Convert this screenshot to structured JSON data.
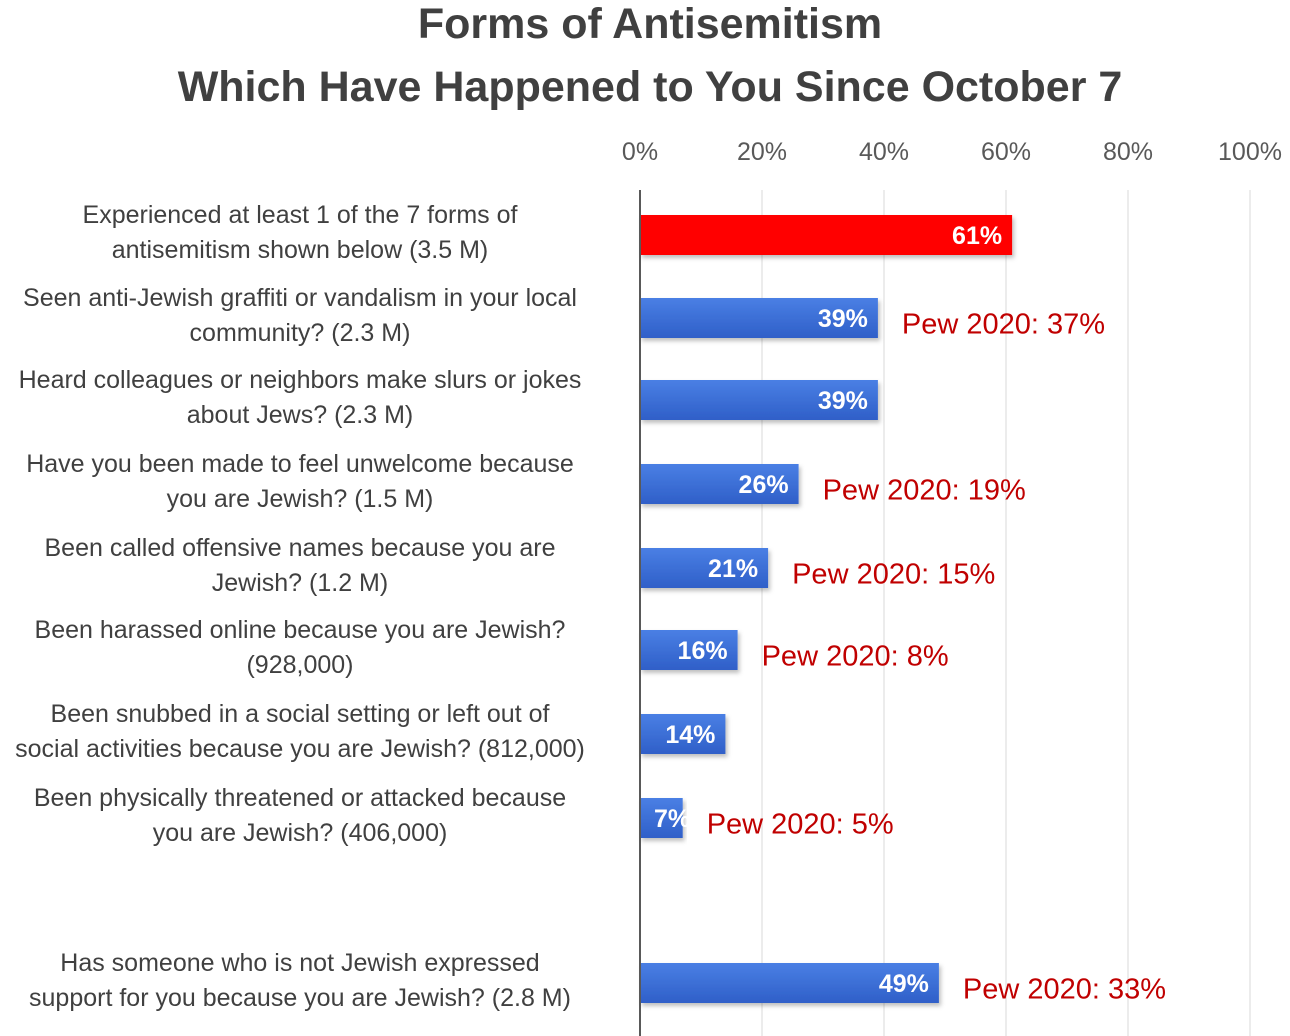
{
  "chart_data": {
    "type": "bar",
    "orientation": "horizontal",
    "title": "Forms of Antisemitism",
    "subtitle": "Which Have Happened to You Since October 7",
    "xlabel": "",
    "ylabel": "",
    "xlim": [
      0,
      100
    ],
    "x_ticks": [
      "0%",
      "20%",
      "40%",
      "60%",
      "80%",
      "100%"
    ],
    "x_tick_values": [
      0,
      20,
      40,
      60,
      80,
      100
    ],
    "grid": true,
    "tick_position": "top",
    "categories": [
      "Experienced at least 1 of the 7 forms of antisemitism shown below (3.5 M)",
      "Seen anti-Jewish graffiti or vandalism in your local community? (2.3 M)",
      "Heard colleagues or neighbors make slurs or jokes about Jews? (2.3 M)",
      "Have you been made to feel unwelcome because you are Jewish? (1.5 M)",
      "Been called offensive names because you are Jewish? (1.2 M)",
      "Been harassed online because you are Jewish? (928,000)",
      "Been snubbed in a social setting or left out of social activities because you are Jewish? (812,000)",
      "Been physically threatened or attacked because you are Jewish? (406,000)",
      "Has someone who is not Jewish expressed support for you because you are Jewish? (2.8 M)"
    ],
    "category_lines": [
      [
        "Experienced at least 1 of the 7 forms of",
        "antisemitism shown below (3.5 M)"
      ],
      [
        "Seen anti-Jewish graffiti or vandalism in your local",
        "community? (2.3 M)"
      ],
      [
        "Heard colleagues or neighbors make slurs or jokes",
        "about Jews? (2.3 M)"
      ],
      [
        "Have you been made to feel unwelcome because",
        "you are Jewish? (1.5 M)"
      ],
      [
        "Been called offensive names because you are",
        "Jewish? (1.2 M)"
      ],
      [
        "Been harassed online because you are Jewish?",
        "(928,000)"
      ],
      [
        "Been snubbed in a social setting or left out of",
        "social activities because you are Jewish? (812,000)"
      ],
      [
        "Been physically threatened or attacked because",
        "you are Jewish? (406,000)"
      ],
      [
        "Has someone who is not Jewish expressed",
        "support for you because you are Jewish? (2.8 M)"
      ]
    ],
    "values": [
      61,
      39,
      39,
      26,
      21,
      16,
      14,
      7,
      49
    ],
    "data_labels": [
      "61%",
      "39%",
      "39%",
      "26%",
      "21%",
      "16%",
      "14%",
      "7%",
      "49%"
    ],
    "bar_colors": [
      "#ff0000",
      "#3a6fd8",
      "#3a6fd8",
      "#3a6fd8",
      "#3a6fd8",
      "#3a6fd8",
      "#3a6fd8",
      "#3a6fd8",
      "#3a6fd8"
    ],
    "annotations": [
      null,
      "Pew 2020: 37%",
      null,
      "Pew 2020: 19%",
      "Pew 2020: 15%",
      "Pew 2020: 8%",
      null,
      "Pew 2020: 5%",
      "Pew 2020: 33%"
    ],
    "annotation_color": "#c00000",
    "gap_before_last": true
  }
}
